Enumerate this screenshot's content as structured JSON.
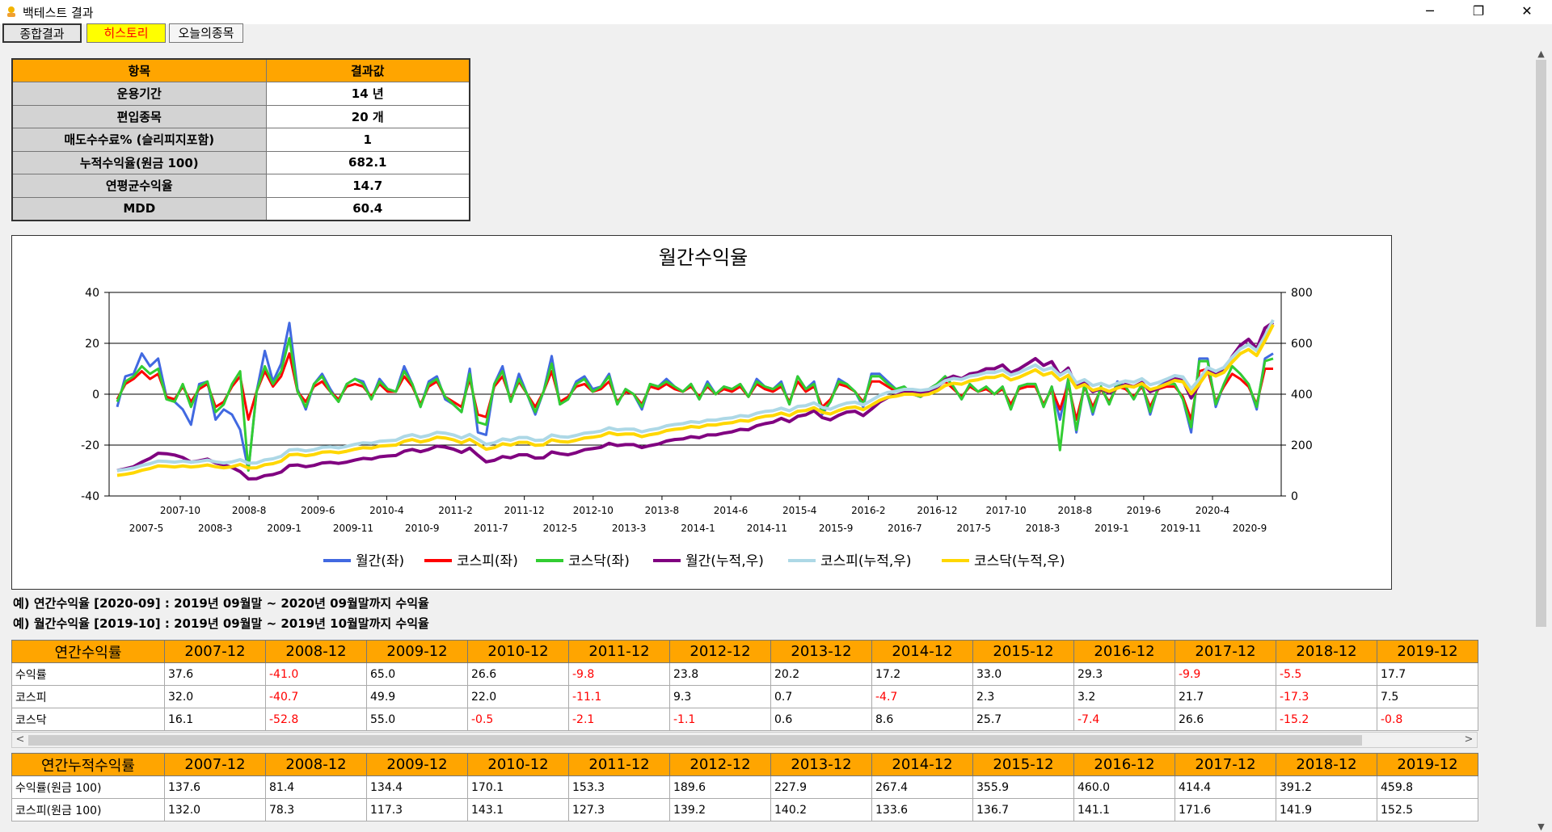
{
  "window": {
    "title": "백테스트 결과",
    "minimize": "─",
    "maximize": "❐",
    "close": "✕"
  },
  "tabs": [
    {
      "label": "종합결과"
    },
    {
      "label": "히스토리"
    },
    {
      "label": "오늘의종목"
    }
  ],
  "summary": {
    "header": [
      "항목",
      "결과값"
    ],
    "rows": [
      [
        "운용기간",
        "14 년"
      ],
      [
        "편입종목",
        "20 개"
      ],
      [
        "매도수수료% (슬리피지포함)",
        "1"
      ],
      [
        "누적수익율(원금 100)",
        "682.1"
      ],
      [
        "연평균수익율",
        "14.7"
      ],
      [
        "MDD",
        "60.4"
      ]
    ]
  },
  "chart_data": {
    "type": "line",
    "title": "월간수익율",
    "x_ticks_top": [
      "2007-10",
      "2008-8",
      "2009-6",
      "2010-4",
      "2011-2",
      "2011-12",
      "2012-10",
      "2013-8",
      "2014-6",
      "2015-4",
      "2016-2",
      "2016-12",
      "2017-10",
      "2018-8",
      "2019-6",
      "2020-4"
    ],
    "x_ticks_bottom": [
      "2007-5",
      "2008-3",
      "2009-1",
      "2009-11",
      "2010-9",
      "2011-7",
      "2012-5",
      "2013-3",
      "2014-1",
      "2014-11",
      "2015-9",
      "2016-7",
      "2017-5",
      "2018-3",
      "2019-1",
      "2019-11",
      "2020-9"
    ],
    "y_left": {
      "min": -40,
      "max": 40,
      "ticks": [
        "40",
        "20",
        "0",
        "-20",
        "-40"
      ]
    },
    "y_right": {
      "min": 0,
      "max": 800,
      "ticks": [
        "800",
        "600",
        "400",
        "200",
        "0"
      ]
    },
    "legend_position": "bottom",
    "legend": [
      {
        "name": "월간(좌)",
        "color": "#4169e1"
      },
      {
        "name": "코스피(좌)",
        "color": "#ff0000"
      },
      {
        "name": "코스닥(좌)",
        "color": "#32cd32"
      },
      {
        "name": "월간(누적,우)",
        "color": "#800080"
      },
      {
        "name": "코스피(누적,우)",
        "color": "#add8e6"
      },
      {
        "name": "코스닥(누적,우)",
        "color": "#ffd700"
      }
    ],
    "series": [
      {
        "name": "월간(좌)",
        "axis": "left",
        "values": [
          -5,
          7,
          8,
          16,
          11,
          14,
          -1,
          -3,
          -6,
          -12,
          4,
          5,
          -10,
          -6,
          -8,
          -14,
          -30,
          1,
          17,
          5,
          12,
          28,
          2,
          -6,
          4,
          8,
          2,
          -3,
          4,
          6,
          5,
          -2,
          6,
          2,
          1,
          11,
          4,
          -5,
          5,
          7,
          -2,
          -4,
          -7,
          10,
          -15,
          -16,
          4,
          11,
          -3,
          8,
          0,
          -8,
          1,
          15,
          -4,
          -2,
          5,
          7,
          2,
          3,
          8,
          -4,
          2,
          0,
          -6,
          4,
          3,
          6,
          3,
          1,
          4,
          -2,
          5,
          0,
          3,
          2,
          4,
          -1,
          6,
          3,
          2,
          5,
          -4,
          7,
          2,
          5,
          -8,
          -3,
          6,
          4,
          1,
          -5,
          8,
          8,
          5,
          2,
          3,
          0,
          -1,
          2,
          4,
          7,
          3,
          -2,
          4,
          1,
          3,
          0,
          3,
          -6,
          3,
          4,
          4,
          -5,
          3,
          -10,
          6,
          -15,
          4,
          -8,
          3,
          -4,
          5,
          3,
          -2,
          4,
          -8,
          3,
          5,
          4,
          -2,
          -15,
          14,
          14,
          -5,
          4,
          11,
          8,
          4,
          -6,
          14,
          16
        ]
      },
      {
        "name": "코스피(좌)",
        "axis": "left",
        "values": [
          -2,
          4,
          6,
          9,
          6,
          8,
          -1,
          -2,
          3,
          -3,
          2,
          4,
          -5,
          -3,
          3,
          7,
          -10,
          1,
          9,
          3,
          7,
          16,
          1,
          -3,
          3,
          5,
          1,
          -2,
          3,
          4,
          3,
          -1,
          4,
          1,
          1,
          7,
          3,
          -4,
          3,
          5,
          -1,
          -3,
          -5,
          6,
          -8,
          -9,
          3,
          7,
          -2,
          5,
          0,
          -5,
          1,
          9,
          -3,
          -1,
          3,
          4,
          1,
          2,
          5,
          -3,
          1,
          0,
          -4,
          3,
          2,
          4,
          2,
          1,
          3,
          -1,
          3,
          0,
          2,
          1,
          3,
          -1,
          4,
          2,
          1,
          3,
          -3,
          5,
          1,
          3,
          -5,
          -2,
          4,
          3,
          1,
          -3,
          5,
          5,
          3,
          1,
          2,
          0,
          -1,
          1,
          3,
          5,
          2,
          -1,
          3,
          1,
          2,
          0,
          2,
          -4,
          2,
          3,
          3,
          -4,
          2,
          -6,
          4,
          -10,
          3,
          -5,
          2,
          -3,
          3,
          2,
          -1,
          3,
          -5,
          2,
          3,
          3,
          -1,
          -10,
          9,
          10,
          -3,
          3,
          8,
          6,
          3,
          -4,
          10,
          10
        ]
      },
      {
        "name": "코스닥(좌)",
        "axis": "left",
        "values": [
          -3,
          5,
          7,
          11,
          8,
          10,
          -2,
          -3,
          4,
          -5,
          3,
          5,
          -7,
          -4,
          4,
          9,
          -30,
          1,
          11,
          4,
          9,
          22,
          1,
          -5,
          4,
          7,
          1,
          -3,
          4,
          6,
          4,
          -2,
          5,
          2,
          1,
          9,
          4,
          -5,
          4,
          6,
          -1,
          -4,
          -7,
          8,
          -11,
          -12,
          4,
          9,
          -3,
          6,
          0,
          -7,
          1,
          12,
          -4,
          -2,
          4,
          6,
          1,
          3,
          7,
          -4,
          2,
          0,
          -5,
          4,
          3,
          5,
          3,
          1,
          4,
          -2,
          4,
          0,
          3,
          2,
          4,
          -1,
          5,
          3,
          2,
          4,
          -4,
          7,
          2,
          4,
          -7,
          -3,
          5,
          4,
          1,
          -4,
          7,
          7,
          4,
          2,
          3,
          0,
          -1,
          2,
          4,
          7,
          3,
          -2,
          4,
          1,
          3,
          0,
          3,
          -6,
          3,
          4,
          4,
          -5,
          3,
          -22,
          6,
          -14,
          4,
          -7,
          3,
          -4,
          4,
          3,
          -2,
          4,
          -7,
          3,
          4,
          4,
          -2,
          -13,
          13,
          13,
          -4,
          4,
          11,
          8,
          4,
          -5,
          13,
          14
        ]
      },
      {
        "name": "월간(누적,우)",
        "axis": "right",
        "values": [
          100,
          107,
          115,
          133,
          148,
          168,
          166,
          161,
          151,
          133,
          138,
          145,
          130,
          122,
          112,
          96,
          67,
          68,
          80,
          84,
          94,
          120,
          122,
          115,
          120,
          130,
          132,
          128,
          133,
          141,
          148,
          145,
          154,
          157,
          159,
          176,
          183,
          174,
          183,
          196,
          192,
          184,
          171,
          188,
          160,
          134,
          140,
          155,
          150,
          162,
          162,
          149,
          150,
          173,
          166,
          162,
          170,
          182,
          186,
          191,
          207,
          198,
          202,
          202,
          190,
          198,
          204,
          216,
          222,
          224,
          233,
          229,
          240,
          240,
          247,
          252,
          262,
          260,
          276,
          284,
          290,
          305,
          292,
          313,
          319,
          335,
          308,
          299,
          317,
          330,
          333,
          316,
          341,
          369,
          387,
          395,
          407,
          407,
          403,
          411,
          427,
          457,
          471,
          461,
          480,
          485,
          500,
          500,
          515,
          484,
          499,
          519,
          540,
          513,
          528,
          475,
          503,
          428,
          445,
          410,
          422,
          405,
          425,
          438,
          429,
          446,
          410,
          423,
          444,
          462,
          453,
          385,
          439,
          500,
          475,
          494,
          548,
          592,
          616,
          579,
          660,
          682
        ]
      },
      {
        "name": "코스피(누적,우)",
        "axis": "right",
        "values": [
          100,
          104,
          110,
          120,
          127,
          137,
          136,
          133,
          137,
          133,
          136,
          141,
          134,
          130,
          134,
          143,
          129,
          130,
          142,
          146,
          156,
          181,
          183,
          177,
          182,
          191,
          193,
          189,
          195,
          203,
          209,
          207,
          215,
          217,
          219,
          234,
          241,
          231,
          238,
          250,
          247,
          240,
          228,
          242,
          223,
          203,
          209,
          224,
          219,
          230,
          230,
          218,
          220,
          240,
          233,
          231,
          238,
          247,
          250,
          255,
          268,
          260,
          263,
          263,
          252,
          260,
          265,
          276,
          281,
          284,
          292,
          289,
          298,
          298,
          304,
          307,
          316,
          313,
          325,
          332,
          335,
          345,
          335,
          352,
          355,
          366,
          348,
          341,
          355,
          365,
          369,
          358,
          376,
          395,
          407,
          411,
          419,
          419,
          415,
          419,
          432,
          453,
          462,
          458,
          471,
          476,
          485,
          485,
          495,
          475,
          485,
          500,
          515,
          494,
          504,
          474,
          493,
          444,
          457,
          434,
          443,
          430,
          443,
          452,
          447,
          461,
          437,
          446,
          459,
          473,
          468,
          421,
          459,
          505,
          490,
          505,
          545,
          578,
          595,
          571,
          629,
          692
        ]
      }
    ]
  },
  "notes": [
    "예) 연간수익율 [2020-09] : 2019년 09월말 ~ 2020년 09월말까지 수익율",
    "예) 월간수익율 [2019-10] : 2019년 09월말 ~ 2019년 10월말까지 수익율"
  ],
  "annual_returns": {
    "header": [
      "연간수익률",
      "2007-12",
      "2008-12",
      "2009-12",
      "2010-12",
      "2011-12",
      "2012-12",
      "2013-12",
      "2014-12",
      "2015-12",
      "2016-12",
      "2017-12",
      "2018-12",
      "2019-12"
    ],
    "rows": [
      [
        "수익률",
        "37.6",
        "-41.0",
        "65.0",
        "26.6",
        "-9.8",
        "23.8",
        "20.2",
        "17.2",
        "33.0",
        "29.3",
        "-9.9",
        "-5.5",
        "17.7"
      ],
      [
        "코스피",
        "32.0",
        "-40.7",
        "49.9",
        "22.0",
        "-11.1",
        "9.3",
        "0.7",
        "-4.7",
        "2.3",
        "3.2",
        "21.7",
        "-17.3",
        "7.5"
      ],
      [
        "코스닥",
        "16.1",
        "-52.8",
        "55.0",
        "-0.5",
        "-2.1",
        "-1.1",
        "0.6",
        "8.6",
        "25.7",
        "-7.4",
        "26.6",
        "-15.2",
        "-0.8"
      ]
    ],
    "scroll_left": "<",
    "scroll_right": ">"
  },
  "cumulative_returns": {
    "header": [
      "연간누적수익률",
      "2007-12",
      "2008-12",
      "2009-12",
      "2010-12",
      "2011-12",
      "2012-12",
      "2013-12",
      "2014-12",
      "2015-12",
      "2016-12",
      "2017-12",
      "2018-12",
      "2019-12"
    ],
    "rows": [
      [
        "수익률(원금 100)",
        "137.6",
        "81.4",
        "134.4",
        "170.1",
        "153.3",
        "189.6",
        "227.9",
        "267.4",
        "355.9",
        "460.0",
        "414.4",
        "391.2",
        "459.8"
      ],
      [
        "코스피(원금 100)",
        "132.0",
        "78.3",
        "117.3",
        "143.1",
        "127.3",
        "139.2",
        "140.2",
        "133.6",
        "136.7",
        "141.1",
        "171.6",
        "141.9",
        "152.5"
      ]
    ]
  },
  "vscroll": {
    "up": "▲",
    "down": "▼"
  }
}
